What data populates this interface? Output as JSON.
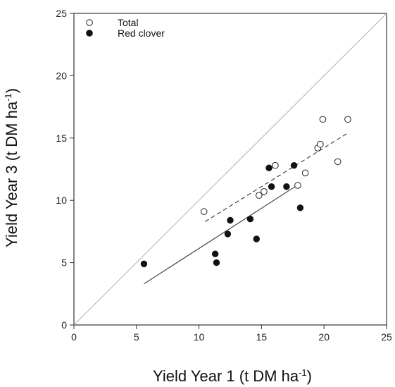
{
  "chart_data": {
    "type": "scatter",
    "xlabel": {
      "main": "Yield Year 1 (t DM ha",
      "sup": "-1",
      "close": ")"
    },
    "ylabel": {
      "main": "Yield Year 3 (t DM ha",
      "sup": "-1",
      "close": ")"
    },
    "xlim": [
      0,
      25
    ],
    "ylim": [
      0,
      25
    ],
    "xticks": [
      0,
      5,
      10,
      15,
      20,
      25
    ],
    "yticks": [
      0,
      5,
      10,
      15,
      20,
      25
    ],
    "grid": false,
    "legend_position": "top-left",
    "series": [
      {
        "name": "Total",
        "marker": "open-circle",
        "color": "#222222",
        "points": [
          [
            10.4,
            9.1
          ],
          [
            14.8,
            10.4
          ],
          [
            15.2,
            10.7
          ],
          [
            16.1,
            12.8
          ],
          [
            17.9,
            11.2
          ],
          [
            18.5,
            12.2
          ],
          [
            19.5,
            14.2
          ],
          [
            19.7,
            14.5
          ],
          [
            19.9,
            16.5
          ],
          [
            21.1,
            13.1
          ],
          [
            21.9,
            16.5
          ]
        ],
        "fit": {
          "x": [
            10.5,
            21.9
          ],
          "y": [
            8.3,
            15.4
          ],
          "style": "dashed"
        }
      },
      {
        "name": "Red clover",
        "marker": "filled-circle",
        "color": "#111111",
        "points": [
          [
            5.6,
            4.9
          ],
          [
            11.3,
            5.7
          ],
          [
            11.4,
            5.0
          ],
          [
            12.3,
            7.3
          ],
          [
            12.5,
            8.4
          ],
          [
            14.1,
            8.5
          ],
          [
            14.6,
            6.9
          ],
          [
            15.6,
            12.6
          ],
          [
            15.8,
            11.1
          ],
          [
            17.0,
            11.1
          ],
          [
            17.6,
            12.8
          ],
          [
            18.1,
            9.4
          ]
        ],
        "fit": {
          "x": [
            5.6,
            18.0
          ],
          "y": [
            3.3,
            11.3
          ],
          "style": "solid"
        }
      }
    ],
    "reference_line": {
      "x": [
        0,
        25
      ],
      "y": [
        0,
        25
      ],
      "color": "#b0b0b0"
    }
  }
}
